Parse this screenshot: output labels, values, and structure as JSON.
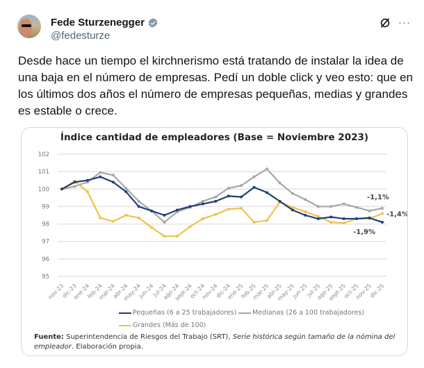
{
  "tweet": {
    "author_name": "Fede Sturzenegger",
    "author_handle": "@fedesturze",
    "verified": true,
    "text": "Desde hace un tiempo el kirchnerismo está tratando de instalar la idea de una baja en el número de empresas. Pedí un doble click y veo esto: que en los últimos dos años el número de empresas pequeñas, medias y grandes es estable o crece.",
    "more_label": "···",
    "icons": [
      "grok-icon",
      "more-icon",
      "verified-badge-icon"
    ]
  },
  "chart_data": {
    "type": "line",
    "title": "Índice cantidad de empleadores (Base = Noviembre 2023)",
    "categories": [
      "nov-23",
      "dic-23",
      "ene-24",
      "feb-24",
      "mar-24",
      "abr-24",
      "may-24",
      "jun-24",
      "jul-24",
      "ago-24",
      "sept-24",
      "oct-24",
      "nov-24",
      "dic-24",
      "ene-25",
      "feb-25",
      "mar-25",
      "abr-25",
      "may-25",
      "jun-25",
      "jul-25",
      "ago-25",
      "sept-25",
      "oct-25",
      "nov-25",
      "dic-25"
    ],
    "yticks": [
      "95",
      "96",
      "97",
      "98",
      "99",
      "100",
      "101",
      "102"
    ],
    "ylim": [
      95,
      102
    ],
    "grid": true,
    "legend_position": "bottom",
    "series": [
      {
        "name": "Pequeñas (6 a 25 trabajadores)",
        "color": "#1f3f73",
        "values": [
          100,
          100.4,
          100.5,
          100.7,
          100.4,
          99.85,
          99.0,
          98.75,
          98.5,
          98.8,
          99.0,
          99.15,
          99.3,
          99.6,
          99.55,
          100.1,
          99.8,
          99.3,
          98.8,
          98.5,
          98.3,
          98.4,
          98.3,
          98.3,
          98.35,
          98.1
        ],
        "end_label": "-1,9%"
      },
      {
        "name": "Medianas (26 a 100 trabajadores)",
        "color": "#a6a6a6",
        "values": [
          100,
          100.15,
          100.4,
          100.95,
          100.8,
          100.05,
          99.3,
          98.75,
          98.1,
          98.7,
          98.95,
          99.3,
          99.55,
          100.05,
          100.2,
          100.7,
          101.15,
          100.35,
          99.75,
          99.4,
          99.0,
          99.0,
          99.15,
          98.95,
          98.75,
          98.9
        ],
        "end_label": "-1,1%"
      },
      {
        "name": "Grandes (Más de 100)",
        "color": "#f0c04a",
        "values": [
          100,
          100.45,
          99.85,
          98.35,
          98.15,
          98.5,
          98.35,
          97.8,
          97.3,
          97.3,
          97.85,
          98.3,
          98.55,
          98.85,
          98.9,
          98.1,
          98.2,
          99.25,
          98.95,
          98.7,
          98.43,
          98.1,
          98.05,
          98.3,
          98.3,
          98.6
        ],
        "end_label": "-1,4%"
      }
    ],
    "source_label": "Fuente:",
    "source_text": " Superintendencia de Riesgos del Trabajo (SRT), ",
    "source_italic": "Serie histórica según tamaño de la nómina del empleador",
    "source_end": ". Elaboración propia."
  }
}
